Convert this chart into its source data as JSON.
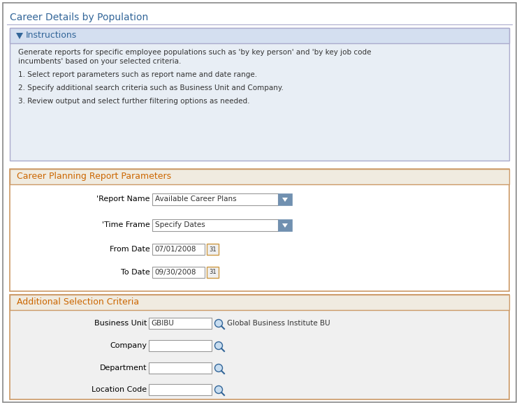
{
  "title": "Career Details by Population",
  "title_color": "#336699",
  "title_fontsize": 10,
  "bg_color": "#ffffff",
  "instructions_header": "Instructions",
  "instructions_header_color": "#336699",
  "instructions_header_bg": "#d4dff0",
  "instructions_bg": "#e8eef5",
  "instructions_text_lines": [
    "Generate reports for specific employee populations such as 'by key person' and 'by key job code",
    "incumbents' based on your selected criteria.",
    "",
    "1. Select report parameters such as report name and date range.",
    "",
    "2. Specify additional search criteria such as Business Unit and Company.",
    "",
    "3. Review output and select further filtering options as needed."
  ],
  "section2_title": "Career Planning Report Parameters",
  "section2_title_color": "#cc6600",
  "section2_border": "#cc9966",
  "section2_bg": "#ffffff",
  "section2_header_bg": "#f0ebe0",
  "report_name_label": "'Report Name",
  "report_name_value": "Available Career Plans",
  "timeframe_label": "'Time Frame",
  "timeframe_value": "Specify Dates",
  "fromdate_label": "From Date",
  "fromdate_value": "07/01/2008",
  "todate_label": "To Date",
  "todate_value": "09/30/2008",
  "dropdown_btn_color": "#7090b0",
  "section3_title": "Additional Selection Criteria",
  "section3_title_color": "#cc6600",
  "section3_border": "#cc9966",
  "section3_bg": "#f0f0f0",
  "section3_header_bg": "#f0ebe0",
  "fields": [
    {
      "label": "Business Unit",
      "value": "GBIBU",
      "extra": "Global Business Institute BU"
    },
    {
      "label": "Company",
      "value": "",
      "extra": ""
    },
    {
      "label": "Department",
      "value": "",
      "extra": ""
    },
    {
      "label": "Location Code",
      "value": "",
      "extra": ""
    }
  ],
  "outer_border": "#888888",
  "field_border": "#999999",
  "label_color": "#000000",
  "text_color": "#333333",
  "divider_color": "#aaaacc",
  "body_fontsize": 7.5,
  "label_fontsize": 8,
  "search_icon_color": "#336699",
  "cal_icon_border": "#cc9944",
  "cal_icon_bg": "#f0f0f0"
}
